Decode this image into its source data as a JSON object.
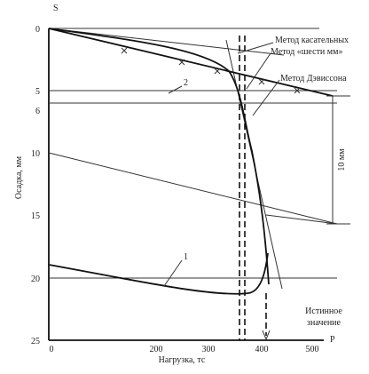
{
  "figure": {
    "axis_y_symbol": "S",
    "axis_x_symbol": "P",
    "y_axis_label": "Осадка, мм",
    "x_axis_label": "Нагрузка, тс",
    "y_ticks": [
      "0",
      "5",
      "6",
      "10",
      "15",
      "20",
      "25"
    ],
    "x_ticks": [
      "0",
      "200",
      "300",
      "400",
      "500"
    ],
    "methods": [
      "Метод касательных",
      "Метод «шести мм»",
      "Метод Дэвиссона"
    ],
    "curve_labels": [
      "1",
      "2"
    ],
    "bracket_label": "10 мм",
    "true_value_label": [
      "Истинное",
      "значение"
    ]
  }
}
